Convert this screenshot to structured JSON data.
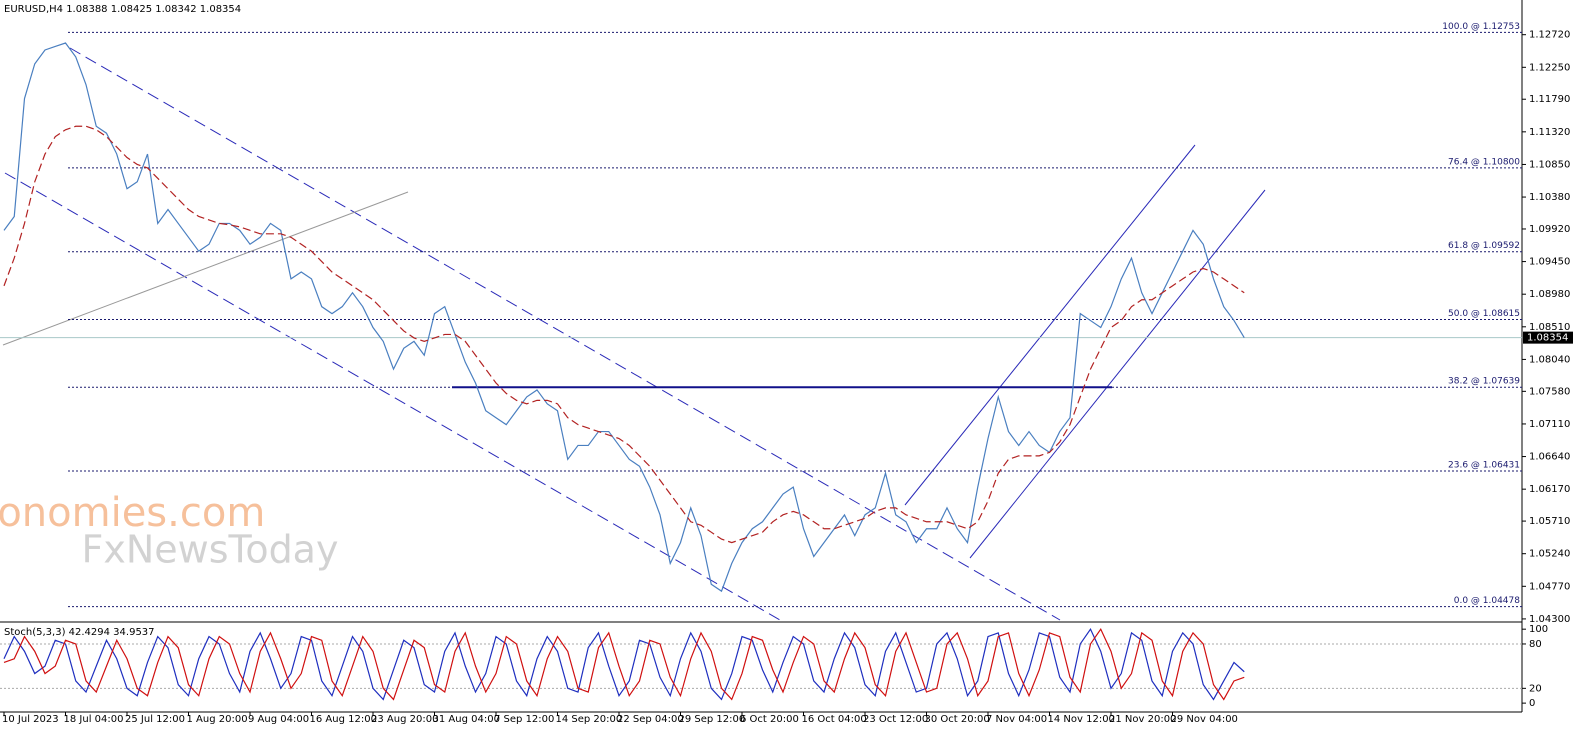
{
  "chart_data": [
    {
      "type": "line",
      "title": "EURUSD,H4  1.08388 1.08425 1.08342 1.08354",
      "categories": [
        "10 Jul 2023",
        null,
        null,
        null,
        null,
        null,
        "18 Jul 04:00",
        null,
        null,
        null,
        null,
        null,
        "25 Jul 12:00",
        null,
        null,
        null,
        null,
        null,
        "1 Aug 20:00",
        null,
        null,
        null,
        null,
        null,
        "9 Aug 04:00",
        null,
        null,
        null,
        null,
        null,
        "16 Aug 12:00",
        null,
        null,
        null,
        null,
        null,
        "23 Aug 20:00",
        null,
        null,
        null,
        null,
        null,
        "31 Aug 04:00",
        null,
        null,
        null,
        null,
        null,
        "7 Sep 12:00",
        null,
        null,
        null,
        null,
        null,
        "14 Sep 20:00",
        null,
        null,
        null,
        null,
        null,
        "22 Sep 04:00",
        null,
        null,
        null,
        null,
        null,
        "29 Sep 12:00",
        null,
        null,
        null,
        null,
        null,
        "6 Oct 20:00",
        null,
        null,
        null,
        null,
        null,
        "16 Oct 04:00",
        null,
        null,
        null,
        null,
        null,
        "23 Oct 12:00",
        null,
        null,
        null,
        null,
        null,
        "30 Oct 20:00",
        null,
        null,
        null,
        null,
        null,
        "7 Nov 04:00",
        null,
        null,
        null,
        null,
        null,
        "14 Nov 12:00",
        null,
        null,
        null,
        null,
        null,
        "21 Nov 20:00",
        null,
        null,
        null,
        null,
        null,
        "29 Nov 04:00",
        null,
        null,
        null,
        null,
        null,
        null,
        null
      ],
      "series": [
        {
          "color": "#4a7fc0",
          "values": [
            1.099,
            1.101,
            1.118,
            1.123,
            1.125,
            1.1255,
            1.126,
            1.124,
            1.12,
            1.114,
            1.113,
            1.11,
            1.105,
            1.106,
            1.11,
            1.1,
            1.102,
            1.1,
            1.098,
            1.096,
            1.097,
            1.1,
            1.1,
            1.099,
            1.097,
            1.098,
            1.1,
            1.099,
            1.092,
            1.093,
            1.092,
            1.088,
            1.087,
            1.088,
            1.09,
            1.088,
            1.085,
            1.083,
            1.079,
            1.082,
            1.083,
            1.081,
            1.087,
            1.088,
            1.084,
            1.08,
            1.077,
            1.073,
            1.072,
            1.071,
            1.073,
            1.075,
            1.076,
            1.074,
            1.073,
            1.066,
            1.068,
            1.068,
            1.07,
            1.07,
            1.068,
            1.066,
            1.065,
            1.062,
            1.058,
            1.051,
            1.054,
            1.059,
            1.055,
            1.048,
            1.047,
            1.051,
            1.054,
            1.056,
            1.057,
            1.059,
            1.061,
            1.062,
            1.056,
            1.052,
            1.054,
            1.056,
            1.058,
            1.055,
            1.058,
            1.059,
            1.064,
            1.058,
            1.057,
            1.054,
            1.056,
            1.056,
            1.059,
            1.056,
            1.054,
            1.062,
            1.069,
            1.075,
            1.07,
            1.068,
            1.07,
            1.068,
            1.067,
            1.07,
            1.072,
            1.087,
            1.086,
            1.085,
            1.088,
            1.092,
            1.095,
            1.09,
            1.087,
            1.09,
            1.093,
            1.096,
            1.099,
            1.097,
            1.092,
            1.088,
            1.086,
            1.08354
          ]
        },
        {
          "color": "#b22222",
          "dashed": true,
          "values": [
            1.091,
            1.095,
            1.1,
            1.106,
            1.11,
            1.1125,
            1.1135,
            1.114,
            1.114,
            1.1135,
            1.1125,
            1.111,
            1.1095,
            1.1085,
            1.108,
            1.1065,
            1.105,
            1.1035,
            1.102,
            1.101,
            1.1005,
            1.1,
            1.0998,
            1.0995,
            1.099,
            1.0985,
            1.0985,
            1.0985,
            1.098,
            1.097,
            1.096,
            1.0945,
            1.093,
            1.092,
            1.091,
            1.09,
            1.089,
            1.0875,
            1.086,
            1.0845,
            1.0835,
            1.083,
            1.0835,
            1.084,
            1.084,
            1.083,
            1.081,
            1.079,
            1.077,
            1.0755,
            1.0745,
            1.074,
            1.0745,
            1.0745,
            1.074,
            1.072,
            1.071,
            1.0705,
            1.07,
            1.0695,
            1.069,
            1.068,
            1.0665,
            1.065,
            1.063,
            1.061,
            1.059,
            1.057,
            1.0565,
            1.0555,
            1.0545,
            1.054,
            1.0545,
            1.055,
            1.0555,
            1.057,
            1.058,
            1.0585,
            1.058,
            1.057,
            1.056,
            1.056,
            1.0565,
            1.057,
            1.0575,
            1.0585,
            1.059,
            1.059,
            1.058,
            1.0575,
            1.057,
            1.057,
            1.057,
            1.0565,
            1.056,
            1.057,
            1.06,
            1.064,
            1.066,
            1.0665,
            1.0665,
            1.0665,
            1.067,
            1.0685,
            1.071,
            1.075,
            1.079,
            1.082,
            1.085,
            1.086,
            1.088,
            1.089,
            1.089,
            1.09,
            1.091,
            1.092,
            1.093,
            1.0935,
            1.093,
            1.092,
            1.091,
            1.09
          ]
        }
      ],
      "ylim": [
        1.0427,
        1.1322
      ],
      "yticks": [
        {
          "value": 1.1272,
          "label": "1.12720"
        },
        {
          "value": 1.1225,
          "label": "1.12250"
        },
        {
          "value": 1.1179,
          "label": "1.11790"
        },
        {
          "value": 1.1132,
          "label": "1.11320"
        },
        {
          "value": 1.1085,
          "label": "1.10850"
        },
        {
          "value": 1.1038,
          "label": "1.10380"
        },
        {
          "value": 1.0992,
          "label": "1.09920"
        },
        {
          "value": 1.0945,
          "label": "1.09450"
        },
        {
          "value": 1.0898,
          "label": "1.08980"
        },
        {
          "value": 1.0851,
          "label": "1.08510"
        },
        {
          "value": 1.0804,
          "label": "1.08040"
        },
        {
          "value": 1.0758,
          "label": "1.07580"
        },
        {
          "value": 1.0711,
          "label": "1.07110"
        },
        {
          "value": 1.0664,
          "label": "1.06640"
        },
        {
          "value": 1.0617,
          "label": "1.06170"
        },
        {
          "value": 1.0571,
          "label": "1.05710"
        },
        {
          "value": 1.0524,
          "label": "1.05240"
        },
        {
          "value": 1.0477,
          "label": "1.04770"
        },
        {
          "value": 1.043,
          "label": "1.04300"
        }
      ],
      "current": {
        "value": 1.08354,
        "label": "1.08354"
      },
      "levels": [
        {
          "value": 1.12753,
          "label": "100.0 @ 1.12753"
        },
        {
          "value": 1.108,
          "label": "76.4 @ 1.10800"
        },
        {
          "value": 1.09592,
          "label": "61.8 @ 1.09592"
        },
        {
          "value": 1.08615,
          "label": "50.0 @ 1.08615"
        },
        {
          "value": 1.07639,
          "label": "38.2 @ 1.07639"
        },
        {
          "value": 1.06431,
          "label": "23.6 @ 1.06431"
        },
        {
          "value": 1.04478,
          "label": "0.0 @ 1.04478"
        }
      ]
    },
    {
      "type": "line",
      "title": "Stoch(5,3,3) 42.4294 34.9537",
      "series": [
        {
          "color": "#1f2fbf",
          "values": [
            60,
            90,
            70,
            40,
            50,
            85,
            80,
            30,
            15,
            50,
            85,
            60,
            20,
            10,
            55,
            90,
            75,
            25,
            10,
            60,
            90,
            80,
            40,
            15,
            70,
            95,
            60,
            20,
            40,
            90,
            85,
            30,
            10,
            50,
            90,
            70,
            20,
            5,
            45,
            85,
            75,
            25,
            15,
            70,
            95,
            50,
            15,
            40,
            90,
            80,
            30,
            10,
            60,
            90,
            70,
            20,
            15,
            75,
            95,
            50,
            10,
            30,
            85,
            80,
            35,
            10,
            60,
            95,
            70,
            20,
            5,
            40,
            90,
            85,
            45,
            15,
            55,
            90,
            80,
            30,
            15,
            60,
            95,
            75,
            25,
            10,
            70,
            95,
            55,
            15,
            20,
            80,
            95,
            60,
            10,
            30,
            90,
            95,
            40,
            10,
            45,
            95,
            90,
            35,
            15,
            80,
            100,
            70,
            20,
            40,
            95,
            85,
            30,
            10,
            70,
            95,
            80,
            25,
            5,
            30,
            55,
            42.4294
          ]
        },
        {
          "color": "#d01010",
          "values": [
            55,
            60,
            90,
            70,
            40,
            50,
            85,
            80,
            30,
            15,
            50,
            85,
            60,
            20,
            10,
            55,
            90,
            75,
            25,
            10,
            60,
            90,
            80,
            40,
            15,
            70,
            95,
            60,
            20,
            40,
            90,
            85,
            30,
            10,
            50,
            90,
            70,
            20,
            5,
            45,
            85,
            75,
            25,
            15,
            70,
            95,
            50,
            15,
            40,
            90,
            80,
            30,
            10,
            60,
            90,
            70,
            20,
            15,
            75,
            95,
            50,
            10,
            30,
            85,
            80,
            35,
            10,
            60,
            95,
            70,
            20,
            5,
            40,
            90,
            85,
            45,
            15,
            55,
            90,
            80,
            30,
            15,
            60,
            95,
            75,
            25,
            10,
            70,
            95,
            55,
            15,
            20,
            80,
            95,
            60,
            10,
            30,
            90,
            95,
            40,
            10,
            45,
            95,
            90,
            35,
            15,
            80,
            100,
            70,
            20,
            40,
            95,
            85,
            30,
            10,
            70,
            95,
            80,
            25,
            5,
            30,
            34.9537
          ]
        }
      ],
      "ylim": [
        -12,
        107
      ],
      "yticks": [
        100,
        80,
        20,
        0
      ]
    }
  ],
  "branding": {
    "logo": "economies.com",
    "sublogo": "FxNewsToday"
  }
}
